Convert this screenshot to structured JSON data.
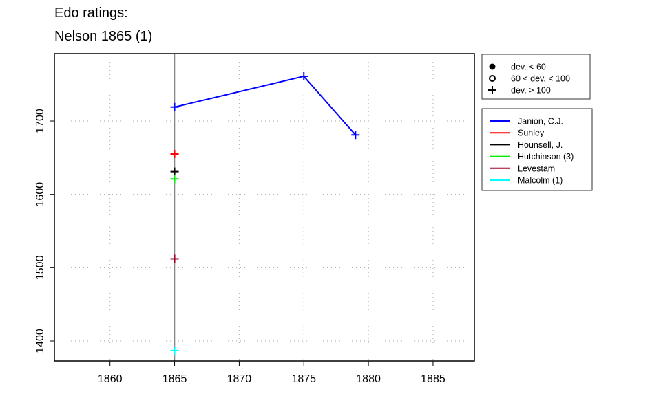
{
  "chart_data": {
    "type": "line",
    "title_lines": [
      "Edo ratings:",
      "Nelson 1865 (1)"
    ],
    "xlabel": "",
    "ylabel": "",
    "xlim": [
      1855.7,
      1888.2
    ],
    "ylim": [
      1372.8,
      1791.9
    ],
    "xticks": [
      1860,
      1865,
      1870,
      1875,
      1880,
      1885
    ],
    "yticks": [
      1400,
      1500,
      1600,
      1700
    ],
    "grid": "dotted",
    "reference_line_x": 1865,
    "series": [
      {
        "name": "Janion, C.J.",
        "color": "#0000ff",
        "points": [
          [
            1865,
            1719
          ],
          [
            1875,
            1761
          ],
          [
            1879,
            1681
          ]
        ]
      },
      {
        "name": "Sunley",
        "color": "#ff0000",
        "points": [
          [
            1865,
            1655
          ]
        ]
      },
      {
        "name": "Hounsell, J.",
        "color": "#000000",
        "points": [
          [
            1865,
            1631
          ]
        ]
      },
      {
        "name": "Hutchinson (3)",
        "color": "#00ee00",
        "points": [
          [
            1865,
            1621
          ]
        ]
      },
      {
        "name": "Levestam",
        "color": "#a00020",
        "points": [
          [
            1865,
            1512
          ]
        ]
      },
      {
        "name": "Malcolm (1)",
        "color": "#00ffff",
        "points": [
          [
            1865,
            1387
          ]
        ]
      }
    ],
    "marker": "plus",
    "symbol_legend": [
      {
        "symbol": "filled-circle",
        "label": "dev. < 60"
      },
      {
        "symbol": "open-circle",
        "label": "60 < dev. < 100"
      },
      {
        "symbol": "plus",
        "label": "dev. > 100"
      }
    ],
    "legend_placement": "right"
  }
}
